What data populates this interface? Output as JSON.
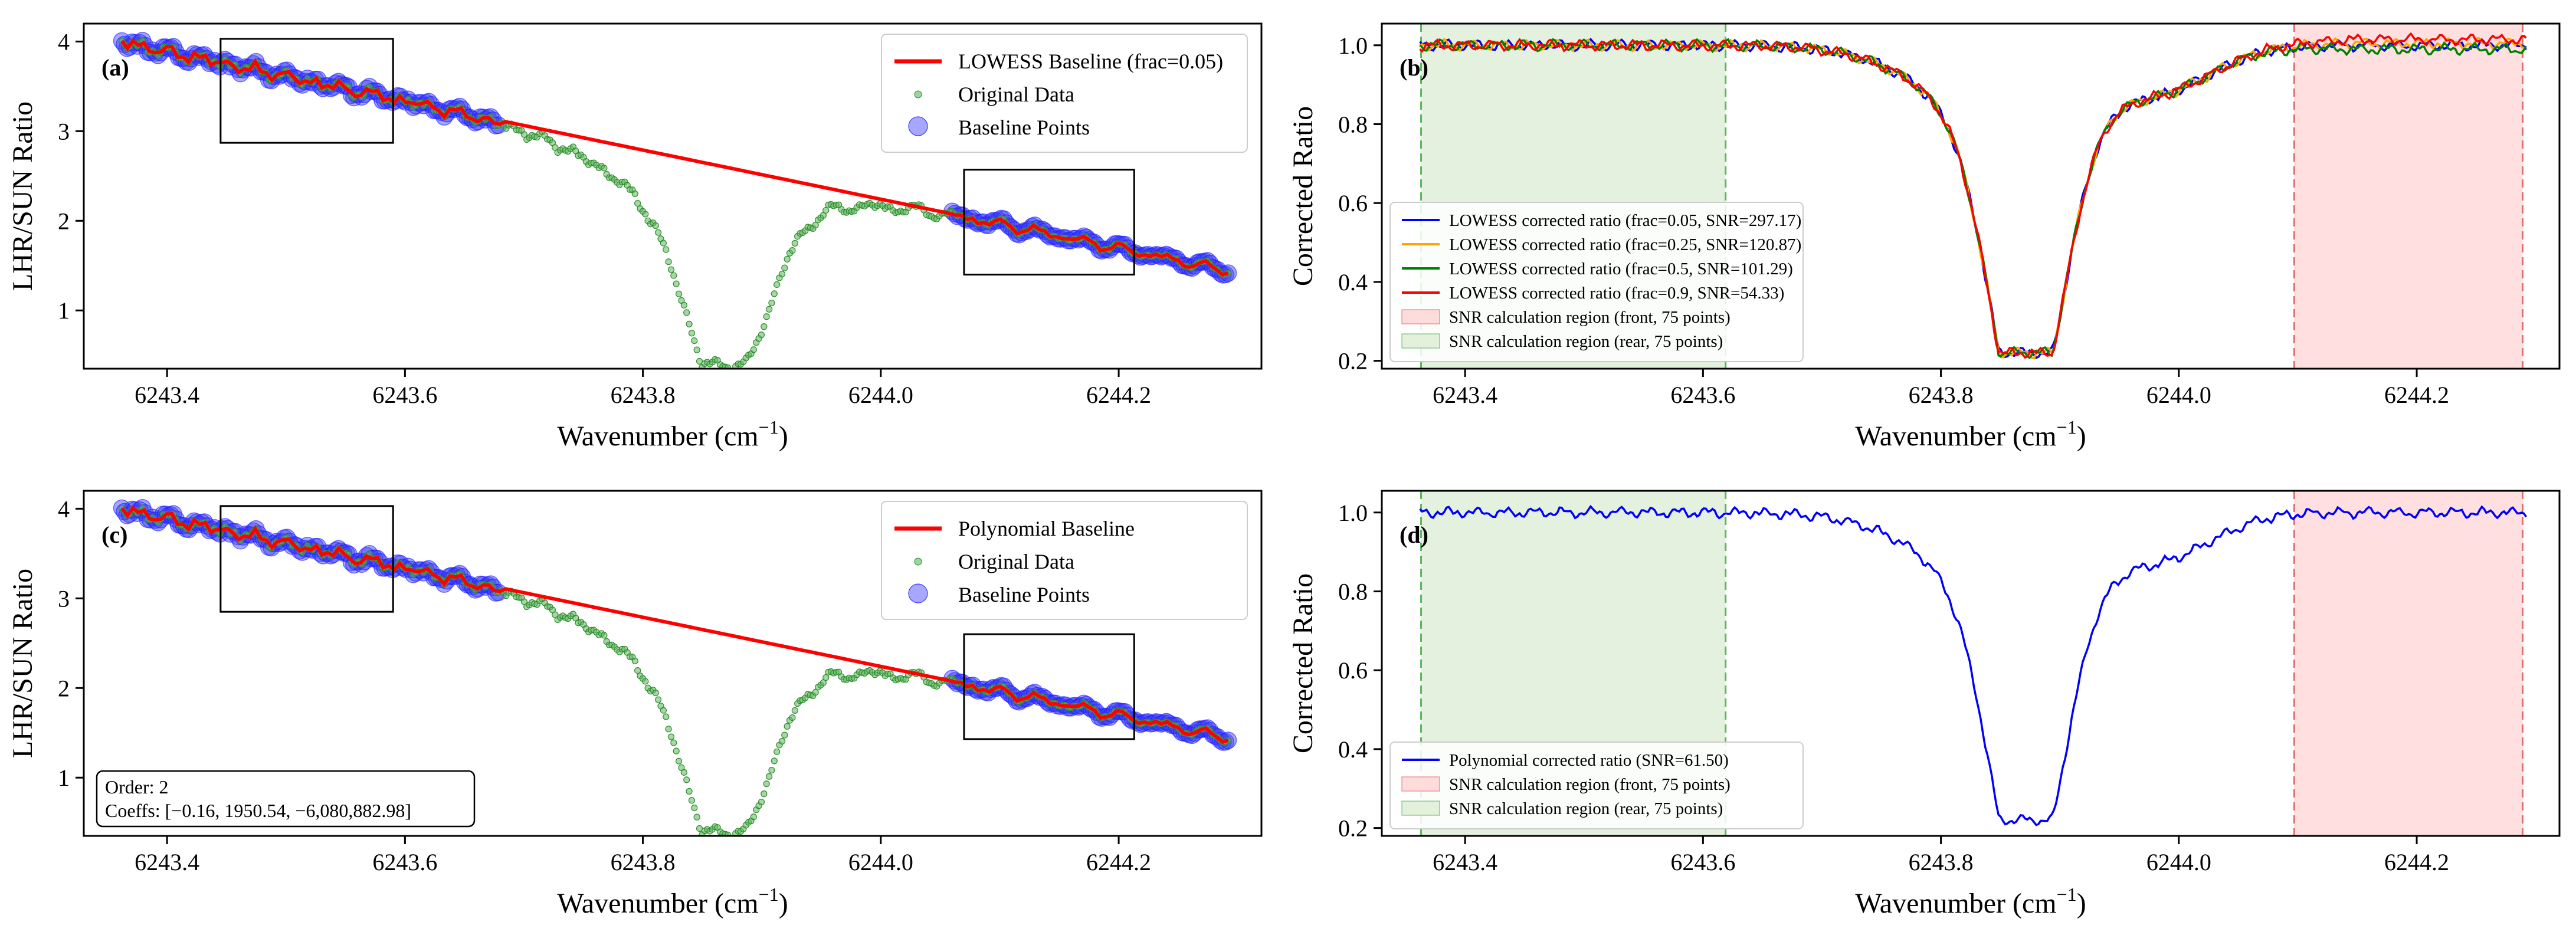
{
  "figure": {
    "panels": [
      {
        "letter": "(a)",
        "xlabel": "Wavenumber (cm",
        "xlabel_sup": "−1",
        "xlabel_tail": ")",
        "ylabel": "LHR/SUN Ratio",
        "legend": [
          "LOWESS Baseline (frac=0.05)",
          "Original Data",
          "Baseline Points"
        ]
      },
      {
        "letter": "(b)",
        "xlabel": "Wavenumber (cm",
        "xlabel_sup": "−1",
        "xlabel_tail": ")",
        "ylabel": "Corrected Ratio",
        "legend": [
          "LOWESS corrected ratio (frac=0.05, SNR=297.17)",
          "LOWESS corrected ratio (frac=0.25, SNR=120.87)",
          "LOWESS corrected ratio (frac=0.5, SNR=101.29)",
          "LOWESS corrected ratio (frac=0.9, SNR=54.33)",
          "SNR calculation region (front, 75 points)",
          "SNR calculation region (rear, 75 points)"
        ]
      },
      {
        "letter": "(c)",
        "xlabel": "Wavenumber (cm",
        "xlabel_sup": "−1",
        "xlabel_tail": ")",
        "ylabel": "LHR/SUN Ratio",
        "legend": [
          "Polynomial Baseline",
          "Original Data",
          "Baseline Points"
        ],
        "annotation": [
          "Order: 2",
          "Coeffs: [−0.16, 1950.54, −6,080,882.98]"
        ]
      },
      {
        "letter": "(d)",
        "xlabel": "Wavenumber (cm",
        "xlabel_sup": "−1",
        "xlabel_tail": ")",
        "ylabel": "Corrected Ratio",
        "legend": [
          "Polynomial corrected ratio (SNR=61.50)",
          "SNR calculation region (front, 75 points)",
          "SNR calculation region (rear, 75 points)"
        ]
      }
    ]
  },
  "chart_data": [
    {
      "panel": "a",
      "type": "scatter",
      "xlim": [
        6243.33,
        6244.32
      ],
      "ylim": [
        0.35,
        4.2
      ],
      "xticks": [
        6243.4,
        6243.6,
        6243.8,
        6244.0,
        6244.2
      ],
      "xtick_labels": [
        "6243.4",
        "6243.6",
        "6243.8",
        "6244.0",
        "6244.2"
      ],
      "yticks": [
        1,
        2,
        3,
        4
      ],
      "ytick_labels": [
        "1",
        "2",
        "3",
        "4"
      ],
      "series": [
        {
          "name": "LOWESS Baseline (frac=0.05)",
          "color": "#ff0000",
          "style": "line"
        },
        {
          "name": "Original Data",
          "color": "#2ca02c",
          "style": "markers"
        },
        {
          "name": "Baseline Points",
          "color": "#0000ff",
          "style": "markers"
        }
      ],
      "original_data_profile": {
        "x_start": 6243.362,
        "x_end": 6244.292,
        "baseline_y_start": 3.99,
        "baseline_y_end": 1.44,
        "absorption_center": 6243.873,
        "absorption_min": 0.58
      },
      "baseline_point_ranges": [
        [
          6243.362,
          6243.68
        ],
        [
          6244.06,
          6244.292
        ]
      ],
      "zoom_boxes": [
        {
          "x": [
            6243.445,
            6243.59
          ],
          "y": [
            2.87,
            4.03
          ]
        },
        {
          "x": [
            6244.07,
            6244.213
          ],
          "y": [
            1.4,
            2.57
          ]
        }
      ],
      "legend_position": "upper right",
      "grid": false
    },
    {
      "panel": "b",
      "type": "line",
      "xlim": [
        6243.33,
        6244.32
      ],
      "ylim": [
        0.18,
        1.055
      ],
      "xticks": [
        6243.4,
        6243.6,
        6243.8,
        6244.0,
        6244.2
      ],
      "xtick_labels": [
        "6243.4",
        "6243.6",
        "6243.8",
        "6244.0",
        "6244.2"
      ],
      "yticks": [
        0.2,
        0.4,
        0.6,
        0.8,
        1.0
      ],
      "ytick_labels": [
        "0.2",
        "0.4",
        "0.6",
        "0.8",
        "1.0"
      ],
      "series": [
        {
          "name": "LOWESS corrected ratio (frac=0.05, SNR=297.17)",
          "color": "#0000ff",
          "tail_offset": 0.0
        },
        {
          "name": "LOWESS corrected ratio (frac=0.25, SNR=120.87)",
          "color": "#ffa500",
          "tail_offset": 0.005
        },
        {
          "name": "LOWESS corrected ratio (frac=0.5, SNR=101.29)",
          "color": "#008000",
          "tail_offset": -0.01
        },
        {
          "name": "LOWESS corrected ratio (frac=0.9, SNR=54.33)",
          "color": "#ff0000",
          "tail_offset": 0.015
        }
      ],
      "line_profile": {
        "absorption_center": 6243.873,
        "absorption_min": 0.22,
        "continuum": 1.0
      },
      "regions": [
        {
          "name": "SNR calculation region (front, 75 points)",
          "x": [
            6244.097,
            6244.289
          ],
          "fill": "#ffdcdc",
          "edge": "#e07070"
        },
        {
          "name": "SNR calculation region (rear, 75 points)",
          "x": [
            6243.363,
            6243.619
          ],
          "fill": "#e2f0dc",
          "edge": "#5cb85c"
        }
      ],
      "legend_position": "lower left",
      "grid": false
    },
    {
      "panel": "c",
      "type": "scatter",
      "xlim": [
        6243.33,
        6244.32
      ],
      "ylim": [
        0.35,
        4.2
      ],
      "xticks": [
        6243.4,
        6243.6,
        6243.8,
        6244.0,
        6244.2
      ],
      "xtick_labels": [
        "6243.4",
        "6243.6",
        "6243.8",
        "6244.0",
        "6244.2"
      ],
      "yticks": [
        1,
        2,
        3,
        4
      ],
      "ytick_labels": [
        "1",
        "2",
        "3",
        "4"
      ],
      "series": [
        {
          "name": "Polynomial Baseline",
          "color": "#ff0000",
          "style": "line"
        },
        {
          "name": "Original Data",
          "color": "#2ca02c",
          "style": "markers"
        },
        {
          "name": "Baseline Points",
          "color": "#0000ff",
          "style": "markers"
        }
      ],
      "original_data_profile": {
        "x_start": 6243.362,
        "x_end": 6244.292,
        "baseline_y_start": 3.99,
        "baseline_y_end": 1.44,
        "absorption_center": 6243.873,
        "absorption_min": 0.58
      },
      "baseline_point_ranges": [
        [
          6243.362,
          6243.68
        ],
        [
          6244.06,
          6244.292
        ]
      ],
      "zoom_boxes": [
        {
          "x": [
            6243.445,
            6243.59
          ],
          "y": [
            2.85,
            4.03
          ]
        },
        {
          "x": [
            6244.07,
            6244.213
          ],
          "y": [
            1.43,
            2.6
          ]
        }
      ],
      "legend_position": "upper right",
      "grid": false
    },
    {
      "panel": "d",
      "type": "line",
      "xlim": [
        6243.33,
        6244.32
      ],
      "ylim": [
        0.18,
        1.055
      ],
      "xticks": [
        6243.4,
        6243.6,
        6243.8,
        6244.0,
        6244.2
      ],
      "xtick_labels": [
        "6243.4",
        "6243.6",
        "6243.8",
        "6244.0",
        "6244.2"
      ],
      "yticks": [
        0.2,
        0.4,
        0.6,
        0.8,
        1.0
      ],
      "ytick_labels": [
        "0.2",
        "0.4",
        "0.6",
        "0.8",
        "1.0"
      ],
      "series": [
        {
          "name": "Polynomial corrected ratio (SNR=61.50)",
          "color": "#0000ff",
          "tail_offset": 0.0
        }
      ],
      "line_profile": {
        "absorption_center": 6243.873,
        "absorption_min": 0.22,
        "continuum": 1.0
      },
      "regions": [
        {
          "name": "SNR calculation region (front, 75 points)",
          "x": [
            6244.097,
            6244.289
          ],
          "fill": "#ffdcdc",
          "edge": "#e07070"
        },
        {
          "name": "SNR calculation region (rear, 75 points)",
          "x": [
            6243.363,
            6243.619
          ],
          "fill": "#e2f0dc",
          "edge": "#5cb85c"
        }
      ],
      "legend_position": "lower left",
      "grid": false
    }
  ]
}
